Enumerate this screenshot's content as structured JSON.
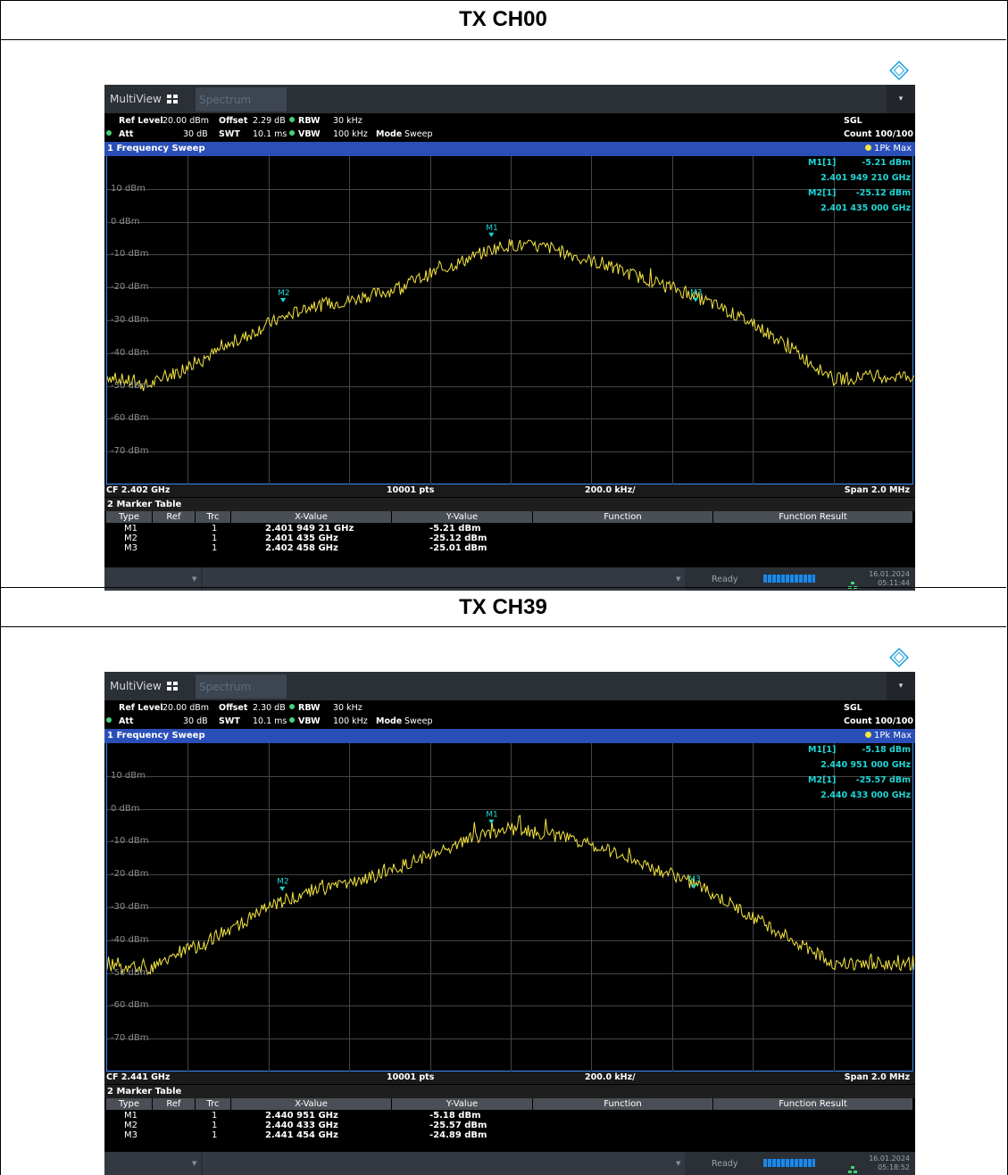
{
  "panels": [
    {
      "title": "TX CH00",
      "toolbar": {
        "tab_multiview": "MultiView",
        "tab_spectrum": "Spectrum",
        "dropdown": "▾"
      },
      "settings": {
        "ref_level_key": "Ref Level",
        "ref_level_val": "20.00 dBm",
        "offset_key": "Offset",
        "offset_val": "2.29 dB",
        "rbw_key": "RBW",
        "rbw_val": "30 kHz",
        "att_key": "Att",
        "att_val": "30 dB",
        "swt_key": "SWT",
        "swt_val": "10.1 ms",
        "vbw_key": "VBW",
        "vbw_val": "100 kHz",
        "mode_key": "Mode",
        "mode_val": "Sweep",
        "sgl": "SGL",
        "count": "Count 100/100"
      },
      "sweep_title": "1 Frequency Sweep",
      "trace_label": "1Pk Max",
      "y_labels": [
        "10 dBm",
        "0 dBm",
        "-10 dBm",
        "-20 dBm",
        "-30 dBm",
        "-40 dBm",
        "-50 dBm",
        "-60 dBm",
        "-70 dBm"
      ],
      "marker_readout": [
        {
          "name": "M1[1]",
          "level": "-5.21 dBm",
          "freq": "2.401 949 210 GHz"
        },
        {
          "name": "M2[1]",
          "level": "-25.12 dBm",
          "freq": "2.401 435 000 GHz"
        }
      ],
      "footer": {
        "cf": "CF 2.402 GHz",
        "pts": "10001 pts",
        "div": "200.0 kHz/",
        "span": "Span 2.0 MHz"
      },
      "marker_table": {
        "title": "2 Marker Table",
        "headers": [
          "Type",
          "Ref",
          "Trc",
          "X-Value",
          "Y-Value",
          "Function",
          "Function Result"
        ],
        "rows": [
          {
            "type": "M1",
            "ref": "",
            "trc": "1",
            "x": "2.401 949 21 GHz",
            "y": "-5.21 dBm"
          },
          {
            "type": "M2",
            "ref": "",
            "trc": "1",
            "x": "2.401 435 GHz",
            "y": "-25.12 dBm"
          },
          {
            "type": "M3",
            "ref": "",
            "trc": "1",
            "x": "2.402 458 GHz",
            "y": "-25.01 dBm"
          }
        ]
      },
      "status": {
        "ready": "Ready",
        "date": "16.01.2024",
        "time": "05:11:44"
      },
      "chart_data": {
        "type": "line",
        "series": [
          {
            "name": "1Pk Max",
            "color": "#f5e642",
            "x_rel_span": [
              0.0,
              0.05,
              0.1,
              0.15,
              0.2,
              0.25,
              0.3,
              0.35,
              0.4,
              0.45,
              0.48,
              0.5,
              0.55,
              0.6,
              0.65,
              0.7,
              0.73,
              0.75,
              0.8,
              0.85,
              0.9,
              0.95,
              1.0
            ],
            "y_dbm": [
              -47,
              -50,
              -44,
              -38,
              -31,
              -26,
              -24,
              -21,
              -16,
              -11,
              -8,
              -7,
              -8,
              -12,
              -16,
              -20,
              -23,
              -25,
              -31,
              -39,
              -48,
              -47,
              -47
            ]
          }
        ],
        "markers": [
          {
            "label": "M1",
            "x_rel_span": 0.476,
            "y_dbm": -5.21
          },
          {
            "label": "M2",
            "x_rel_span": 0.218,
            "y_dbm": -25.12
          },
          {
            "label": "M3",
            "x_rel_span": 0.729,
            "y_dbm": -25.01
          }
        ],
        "xlabel": "",
        "ylabel": "",
        "ylim": [
          -80,
          20
        ],
        "y_ticks": [
          10,
          0,
          -10,
          -20,
          -30,
          -40,
          -50,
          -60,
          -70
        ],
        "x_divisions": 10,
        "grid": true
      }
    },
    {
      "title": "TX CH39",
      "toolbar": {
        "tab_multiview": "MultiView",
        "tab_spectrum": "Spectrum",
        "dropdown": "▾"
      },
      "settings": {
        "ref_level_key": "Ref Level",
        "ref_level_val": "20.00 dBm",
        "offset_key": "Offset",
        "offset_val": "2.30 dB",
        "rbw_key": "RBW",
        "rbw_val": "30 kHz",
        "att_key": "Att",
        "att_val": "30 dB",
        "swt_key": "SWT",
        "swt_val": "10.1 ms",
        "vbw_key": "VBW",
        "vbw_val": "100 kHz",
        "mode_key": "Mode",
        "mode_val": "Sweep",
        "sgl": "SGL",
        "count": "Count 100/100"
      },
      "sweep_title": "1 Frequency Sweep",
      "trace_label": "1Pk Max",
      "y_labels": [
        "10 dBm",
        "0 dBm",
        "-10 dBm",
        "-20 dBm",
        "-30 dBm",
        "-40 dBm",
        "-50 dBm",
        "-60 dBm",
        "-70 dBm"
      ],
      "marker_readout": [
        {
          "name": "M1[1]",
          "level": "-5.18 dBm",
          "freq": "2.440 951 000 GHz"
        },
        {
          "name": "M2[1]",
          "level": "-25.57 dBm",
          "freq": "2.440 433 000 GHz"
        }
      ],
      "footer": {
        "cf": "CF 2.441 GHz",
        "pts": "10001 pts",
        "div": "200.0 kHz/",
        "span": "Span 2.0 MHz"
      },
      "marker_table": {
        "title": "2 Marker Table",
        "headers": [
          "Type",
          "Ref",
          "Trc",
          "X-Value",
          "Y-Value",
          "Function",
          "Function Result"
        ],
        "rows": [
          {
            "type": "M1",
            "ref": "",
            "trc": "1",
            "x": "2.440 951 GHz",
            "y": "-5.18 dBm"
          },
          {
            "type": "M2",
            "ref": "",
            "trc": "1",
            "x": "2.440 433 GHz",
            "y": "-25.57 dBm"
          },
          {
            "type": "M3",
            "ref": "",
            "trc": "1",
            "x": "2.441 454 GHz",
            "y": "-24.89 dBm"
          }
        ]
      },
      "status": {
        "ready": "Ready",
        "date": "16.01.2024",
        "time": "05:18:52"
      },
      "chart_data": {
        "type": "line",
        "series": [
          {
            "name": "1Pk Max",
            "color": "#f5e642",
            "x_rel_span": [
              0.0,
              0.05,
              0.1,
              0.15,
              0.2,
              0.25,
              0.3,
              0.35,
              0.4,
              0.45,
              0.48,
              0.5,
              0.55,
              0.6,
              0.65,
              0.7,
              0.73,
              0.75,
              0.8,
              0.85,
              0.9,
              0.95,
              1.0
            ],
            "y_dbm": [
              -47,
              -49,
              -43,
              -37,
              -30,
              -25,
              -23,
              -19,
              -14,
              -9,
              -7,
              -6,
              -8,
              -11,
              -15,
              -20,
              -23,
              -26,
              -33,
              -40,
              -47,
              -47,
              -48
            ]
          }
        ],
        "markers": [
          {
            "label": "M1",
            "x_rel_span": 0.476,
            "y_dbm": -5.18
          },
          {
            "label": "M2",
            "x_rel_span": 0.217,
            "y_dbm": -25.57
          },
          {
            "label": "M3",
            "x_rel_span": 0.727,
            "y_dbm": -24.89
          }
        ],
        "xlabel": "",
        "ylabel": "",
        "ylim": [
          -80,
          20
        ],
        "y_ticks": [
          10,
          0,
          -10,
          -20,
          -30,
          -40,
          -50,
          -60,
          -70
        ],
        "x_divisions": 10,
        "grid": true
      }
    }
  ],
  "colors": {
    "trace": "#f5e642",
    "marker": "#1fd6d6",
    "sweep_title_bg": "#2a4fb8",
    "plot_border": "#3c8cff"
  }
}
